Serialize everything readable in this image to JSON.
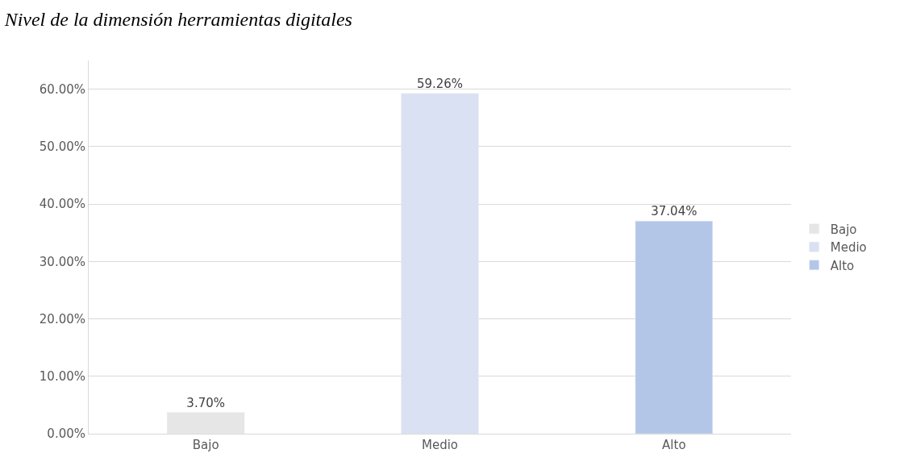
{
  "chart_data": {
    "type": "bar",
    "title": "Nivel de la dimensión herramientas digitales",
    "categories": [
      "Bajo",
      "Medio",
      "Alto"
    ],
    "series": [
      {
        "name": "Bajo",
        "color": "#e7e6e6",
        "values": [
          3.7,
          null,
          null
        ],
        "value_labels": [
          "3.70%",
          null,
          null
        ]
      },
      {
        "name": "Medio",
        "color": "#d9e1f2",
        "values": [
          null,
          59.26,
          null
        ],
        "value_labels": [
          null,
          "59.26%",
          null
        ]
      },
      {
        "name": "Alto",
        "color": "#b4c6e7",
        "values": [
          null,
          null,
          37.04
        ],
        "value_labels": [
          null,
          null,
          "37.04%"
        ]
      }
    ],
    "ylim": [
      0,
      65
    ],
    "yticks": [
      {
        "value": 0,
        "label": "0.00%"
      },
      {
        "value": 10,
        "label": "10.00%"
      },
      {
        "value": 20,
        "label": "20.00%"
      },
      {
        "value": 30,
        "label": "30.00%"
      },
      {
        "value": 40,
        "label": "40.00%"
      },
      {
        "value": 50,
        "label": "50.00%"
      },
      {
        "value": 60,
        "label": "60.00%"
      }
    ],
    "grid": "y",
    "legend": "right"
  }
}
